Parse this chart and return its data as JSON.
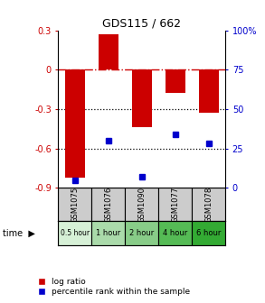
{
  "title": "GDS115 / 662",
  "samples": [
    "GSM1075",
    "GSM1076",
    "GSM1090",
    "GSM1077",
    "GSM1078"
  ],
  "time_labels": [
    "0.5 hour",
    "1 hour",
    "2 hour",
    "4 hour",
    "6 hour"
  ],
  "time_colors": [
    "#d6f0d6",
    "#aadaaa",
    "#88cc88",
    "#55bb55",
    "#33aa33"
  ],
  "log_ratios": [
    -0.82,
    0.27,
    -0.44,
    -0.18,
    -0.33
  ],
  "percentile_ranks": [
    5,
    30,
    7,
    34,
    28
  ],
  "bar_color": "#cc0000",
  "dot_color": "#0000cc",
  "ylim_left": [
    -0.9,
    0.3
  ],
  "ylim_right": [
    0,
    100
  ],
  "yticks_left": [
    0.3,
    0.0,
    -0.3,
    -0.6,
    -0.9
  ],
  "yticks_right": [
    100,
    75,
    50,
    25,
    0
  ],
  "hline_color": "#cc0000",
  "dotline_color": "#000000",
  "bg_color": "#ffffff",
  "gsm_bg": "#cccccc",
  "legend_log_ratio": "log ratio",
  "legend_percentile": "percentile rank within the sample",
  "time_label": "time"
}
